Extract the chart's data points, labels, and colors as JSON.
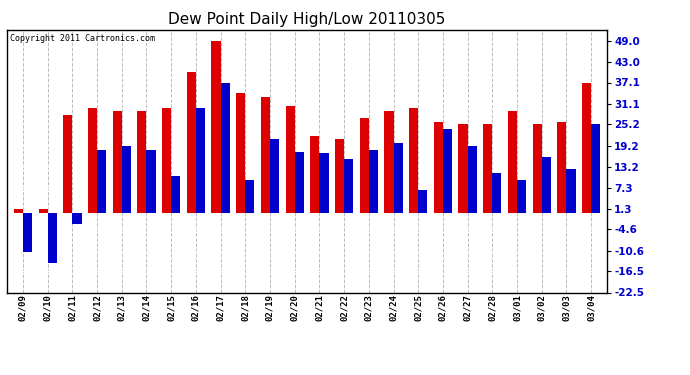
{
  "title": "Dew Point Daily High/Low 20110305",
  "copyright": "Copyright 2011 Cartronics.com",
  "dates": [
    "02/09",
    "02/10",
    "02/11",
    "02/12",
    "02/13",
    "02/14",
    "02/15",
    "02/16",
    "02/17",
    "02/18",
    "02/19",
    "02/20",
    "02/21",
    "02/22",
    "02/23",
    "02/24",
    "02/25",
    "02/26",
    "02/27",
    "02/28",
    "03/01",
    "03/02",
    "03/03",
    "03/04"
  ],
  "highs": [
    1.3,
    1.3,
    28.0,
    30.0,
    29.0,
    29.0,
    30.0,
    40.0,
    49.0,
    34.0,
    33.0,
    30.5,
    22.0,
    21.0,
    27.0,
    29.0,
    30.0,
    26.0,
    25.2,
    25.2,
    29.0,
    25.2,
    26.0,
    37.1
  ],
  "lows": [
    -11.0,
    -14.0,
    -3.0,
    18.0,
    19.0,
    18.0,
    10.5,
    30.0,
    37.1,
    9.5,
    21.0,
    17.5,
    17.0,
    15.5,
    18.0,
    20.0,
    6.5,
    24.0,
    19.2,
    11.5,
    9.5,
    16.0,
    12.5,
    25.2
  ],
  "high_color": "#dd0000",
  "low_color": "#0000cc",
  "bg_color": "#ffffff",
  "grid_color": "#bbbbbb",
  "yticks": [
    49.0,
    43.0,
    37.1,
    31.1,
    25.2,
    19.2,
    13.2,
    7.3,
    1.3,
    -4.6,
    -10.6,
    -16.5,
    -22.5
  ],
  "ymin": -22.5,
  "ymax": 52.0,
  "bar_width": 0.37,
  "title_fontsize": 11,
  "figwidth": 6.9,
  "figheight": 3.75,
  "dpi": 100
}
